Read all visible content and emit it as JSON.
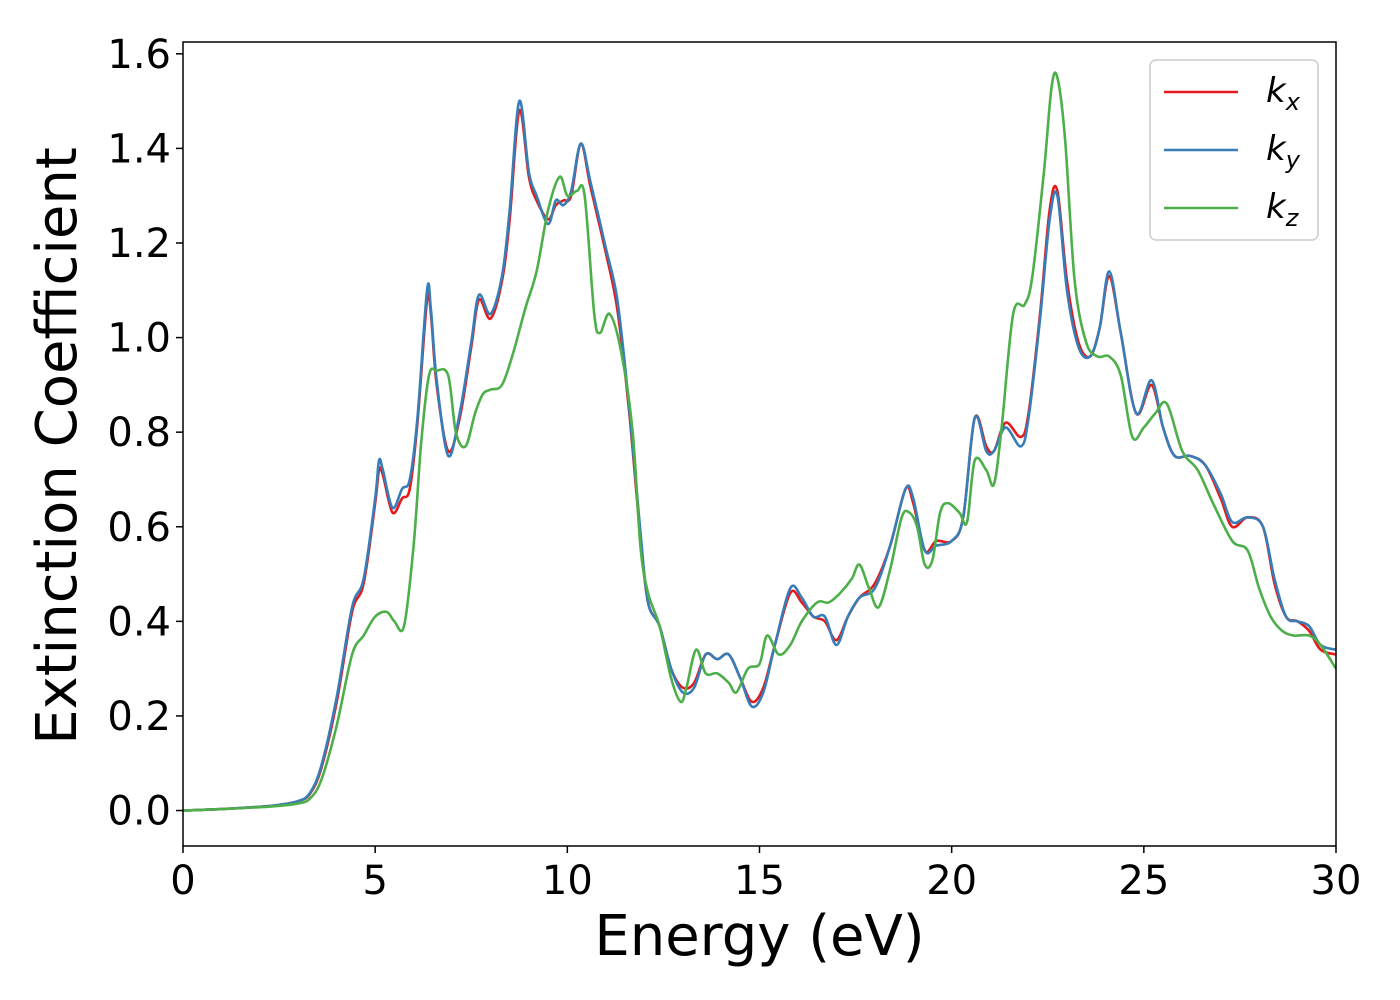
{
  "chart_data": {
    "type": "line",
    "title": "",
    "xlabel": "Energy (eV)",
    "ylabel": "Extinction Coefficient",
    "xlim": [
      0,
      30
    ],
    "ylim": [
      -0.075,
      1.625
    ],
    "xticks": [
      0,
      5,
      10,
      15,
      20,
      25,
      30
    ],
    "xtick_labels": [
      "0",
      "5",
      "10",
      "15",
      "20",
      "25",
      "30"
    ],
    "yticks": [
      0.0,
      0.2,
      0.4,
      0.6,
      0.8,
      1.0,
      1.2,
      1.4,
      1.6
    ],
    "ytick_labels": [
      "0.0",
      "0.2",
      "0.4",
      "0.6",
      "0.8",
      "1.0",
      "1.2",
      "1.4",
      "1.6"
    ],
    "grid": false,
    "legend_position": "top-right",
    "series": [
      {
        "name": "k",
        "subscript": "x",
        "color": "#e41a1c",
        "x": [
          0,
          1,
          2,
          2.5,
          3,
          3.3,
          3.6,
          4.0,
          4.4,
          4.7,
          5.0,
          5.1,
          5.2,
          5.45,
          5.7,
          5.9,
          6.1,
          6.35,
          6.45,
          6.6,
          6.9,
          7.2,
          7.5,
          7.7,
          8.0,
          8.3,
          8.5,
          8.75,
          9.0,
          9.2,
          9.5,
          9.7,
          9.9,
          10.1,
          10.35,
          10.6,
          11.0,
          11.3,
          11.6,
          11.9,
          12.1,
          12.4,
          12.7,
          13.0,
          13.3,
          13.6,
          13.9,
          14.2,
          14.5,
          14.8,
          15.1,
          15.4,
          15.8,
          16.1,
          16.4,
          16.7,
          17.0,
          17.3,
          17.6,
          18.0,
          18.4,
          18.8,
          19.0,
          19.3,
          19.6,
          20.0,
          20.3,
          20.6,
          20.9,
          21.1,
          21.4,
          21.8,
          22.0,
          22.3,
          22.55,
          22.75,
          23.0,
          23.3,
          23.6,
          23.85,
          24.1,
          24.4,
          24.8,
          25.2,
          25.5,
          25.8,
          26.2,
          26.6,
          27.0,
          27.3,
          27.7,
          28.1,
          28.4,
          28.7,
          29.0,
          29.3,
          29.6,
          30.0
        ],
        "y": [
          0.0,
          0.003,
          0.008,
          0.012,
          0.02,
          0.035,
          0.09,
          0.23,
          0.42,
          0.48,
          0.65,
          0.72,
          0.71,
          0.63,
          0.66,
          0.68,
          0.82,
          1.08,
          1.05,
          0.9,
          0.76,
          0.83,
          0.98,
          1.08,
          1.04,
          1.12,
          1.25,
          1.48,
          1.34,
          1.29,
          1.25,
          1.28,
          1.29,
          1.3,
          1.41,
          1.32,
          1.18,
          1.06,
          0.85,
          0.58,
          0.44,
          0.39,
          0.3,
          0.26,
          0.27,
          0.33,
          0.32,
          0.33,
          0.28,
          0.23,
          0.26,
          0.35,
          0.46,
          0.44,
          0.41,
          0.4,
          0.36,
          0.41,
          0.45,
          0.48,
          0.56,
          0.68,
          0.65,
          0.55,
          0.57,
          0.57,
          0.62,
          0.83,
          0.77,
          0.76,
          0.82,
          0.79,
          0.84,
          1.05,
          1.27,
          1.31,
          1.12,
          0.99,
          0.96,
          1.02,
          1.13,
          1.01,
          0.84,
          0.9,
          0.81,
          0.75,
          0.75,
          0.73,
          0.66,
          0.6,
          0.62,
          0.6,
          0.48,
          0.41,
          0.4,
          0.38,
          0.34,
          0.33
        ]
      },
      {
        "name": "k",
        "subscript": "y",
        "color": "#377eb8",
        "x": [
          0,
          1,
          2,
          2.5,
          3,
          3.3,
          3.6,
          4.0,
          4.4,
          4.7,
          5.0,
          5.1,
          5.2,
          5.45,
          5.7,
          5.9,
          6.1,
          6.35,
          6.45,
          6.6,
          6.9,
          7.2,
          7.5,
          7.7,
          8.0,
          8.3,
          8.5,
          8.75,
          9.0,
          9.2,
          9.5,
          9.7,
          9.9,
          10.1,
          10.35,
          10.6,
          11.0,
          11.3,
          11.6,
          11.9,
          12.1,
          12.4,
          12.7,
          13.0,
          13.3,
          13.6,
          13.9,
          14.2,
          14.5,
          14.8,
          15.1,
          15.4,
          15.8,
          16.1,
          16.4,
          16.7,
          17.0,
          17.3,
          17.6,
          18.0,
          18.4,
          18.8,
          19.0,
          19.3,
          19.6,
          20.0,
          20.3,
          20.6,
          20.9,
          21.1,
          21.4,
          21.8,
          22.0,
          22.3,
          22.55,
          22.75,
          23.0,
          23.3,
          23.6,
          23.85,
          24.1,
          24.4,
          24.8,
          25.2,
          25.5,
          25.8,
          26.2,
          26.6,
          27.0,
          27.3,
          27.7,
          28.1,
          28.4,
          28.7,
          29.0,
          29.3,
          29.6,
          30.0
        ],
        "y": [
          0.0,
          0.003,
          0.008,
          0.012,
          0.02,
          0.037,
          0.095,
          0.24,
          0.43,
          0.49,
          0.66,
          0.74,
          0.72,
          0.64,
          0.68,
          0.7,
          0.83,
          1.1,
          1.06,
          0.91,
          0.75,
          0.84,
          0.99,
          1.09,
          1.05,
          1.13,
          1.27,
          1.5,
          1.35,
          1.3,
          1.24,
          1.29,
          1.28,
          1.31,
          1.41,
          1.33,
          1.19,
          1.08,
          0.86,
          0.59,
          0.44,
          0.39,
          0.3,
          0.25,
          0.26,
          0.33,
          0.32,
          0.33,
          0.28,
          0.22,
          0.25,
          0.35,
          0.47,
          0.45,
          0.41,
          0.41,
          0.35,
          0.41,
          0.45,
          0.47,
          0.56,
          0.68,
          0.66,
          0.55,
          0.56,
          0.57,
          0.62,
          0.83,
          0.76,
          0.76,
          0.81,
          0.77,
          0.83,
          1.04,
          1.25,
          1.3,
          1.1,
          0.98,
          0.96,
          1.02,
          1.14,
          1.01,
          0.84,
          0.91,
          0.81,
          0.75,
          0.75,
          0.73,
          0.67,
          0.61,
          0.62,
          0.6,
          0.49,
          0.41,
          0.4,
          0.39,
          0.35,
          0.34
        ]
      },
      {
        "name": "k",
        "subscript": "z",
        "color": "#4daf4a",
        "x": [
          0,
          1,
          2,
          2.5,
          3,
          3.3,
          3.6,
          4.0,
          4.4,
          4.7,
          5.0,
          5.3,
          5.5,
          5.75,
          6.0,
          6.2,
          6.4,
          6.6,
          6.9,
          7.1,
          7.35,
          7.6,
          7.8,
          8.0,
          8.3,
          8.6,
          8.9,
          9.2,
          9.5,
          9.8,
          10.0,
          10.25,
          10.45,
          10.7,
          10.85,
          11.1,
          11.4,
          11.7,
          11.9,
          12.1,
          12.4,
          12.7,
          12.95,
          13.1,
          13.35,
          13.6,
          13.9,
          14.2,
          14.4,
          14.7,
          15.0,
          15.2,
          15.5,
          15.8,
          16.1,
          16.5,
          16.8,
          17.1,
          17.4,
          17.6,
          17.85,
          18.1,
          18.4,
          18.7,
          18.9,
          19.1,
          19.3,
          19.5,
          19.7,
          19.9,
          20.2,
          20.4,
          20.6,
          20.9,
          21.1,
          21.3,
          21.6,
          21.9,
          22.1,
          22.4,
          22.6,
          22.75,
          22.95,
          23.2,
          23.5,
          23.8,
          24.1,
          24.4,
          24.7,
          25.0,
          25.3,
          25.6,
          26.0,
          26.4,
          26.8,
          27.3,
          27.7,
          28.0,
          28.3,
          28.6,
          28.9,
          29.3,
          29.6,
          30.0
        ],
        "y": [
          0.0,
          0.003,
          0.007,
          0.01,
          0.015,
          0.025,
          0.065,
          0.18,
          0.33,
          0.37,
          0.41,
          0.42,
          0.4,
          0.39,
          0.56,
          0.78,
          0.92,
          0.93,
          0.92,
          0.8,
          0.77,
          0.84,
          0.88,
          0.89,
          0.9,
          0.97,
          1.06,
          1.14,
          1.27,
          1.34,
          1.3,
          1.31,
          1.3,
          1.05,
          1.01,
          1.05,
          0.97,
          0.8,
          0.56,
          0.46,
          0.39,
          0.28,
          0.23,
          0.26,
          0.34,
          0.29,
          0.29,
          0.27,
          0.25,
          0.3,
          0.31,
          0.37,
          0.33,
          0.35,
          0.4,
          0.44,
          0.44,
          0.46,
          0.49,
          0.52,
          0.47,
          0.43,
          0.51,
          0.62,
          0.63,
          0.6,
          0.52,
          0.53,
          0.63,
          0.65,
          0.63,
          0.61,
          0.74,
          0.72,
          0.69,
          0.81,
          1.05,
          1.07,
          1.13,
          1.35,
          1.53,
          1.55,
          1.42,
          1.12,
          0.99,
          0.96,
          0.96,
          0.92,
          0.79,
          0.81,
          0.84,
          0.86,
          0.76,
          0.72,
          0.65,
          0.57,
          0.55,
          0.47,
          0.41,
          0.38,
          0.37,
          0.37,
          0.35,
          0.3
        ]
      }
    ]
  }
}
